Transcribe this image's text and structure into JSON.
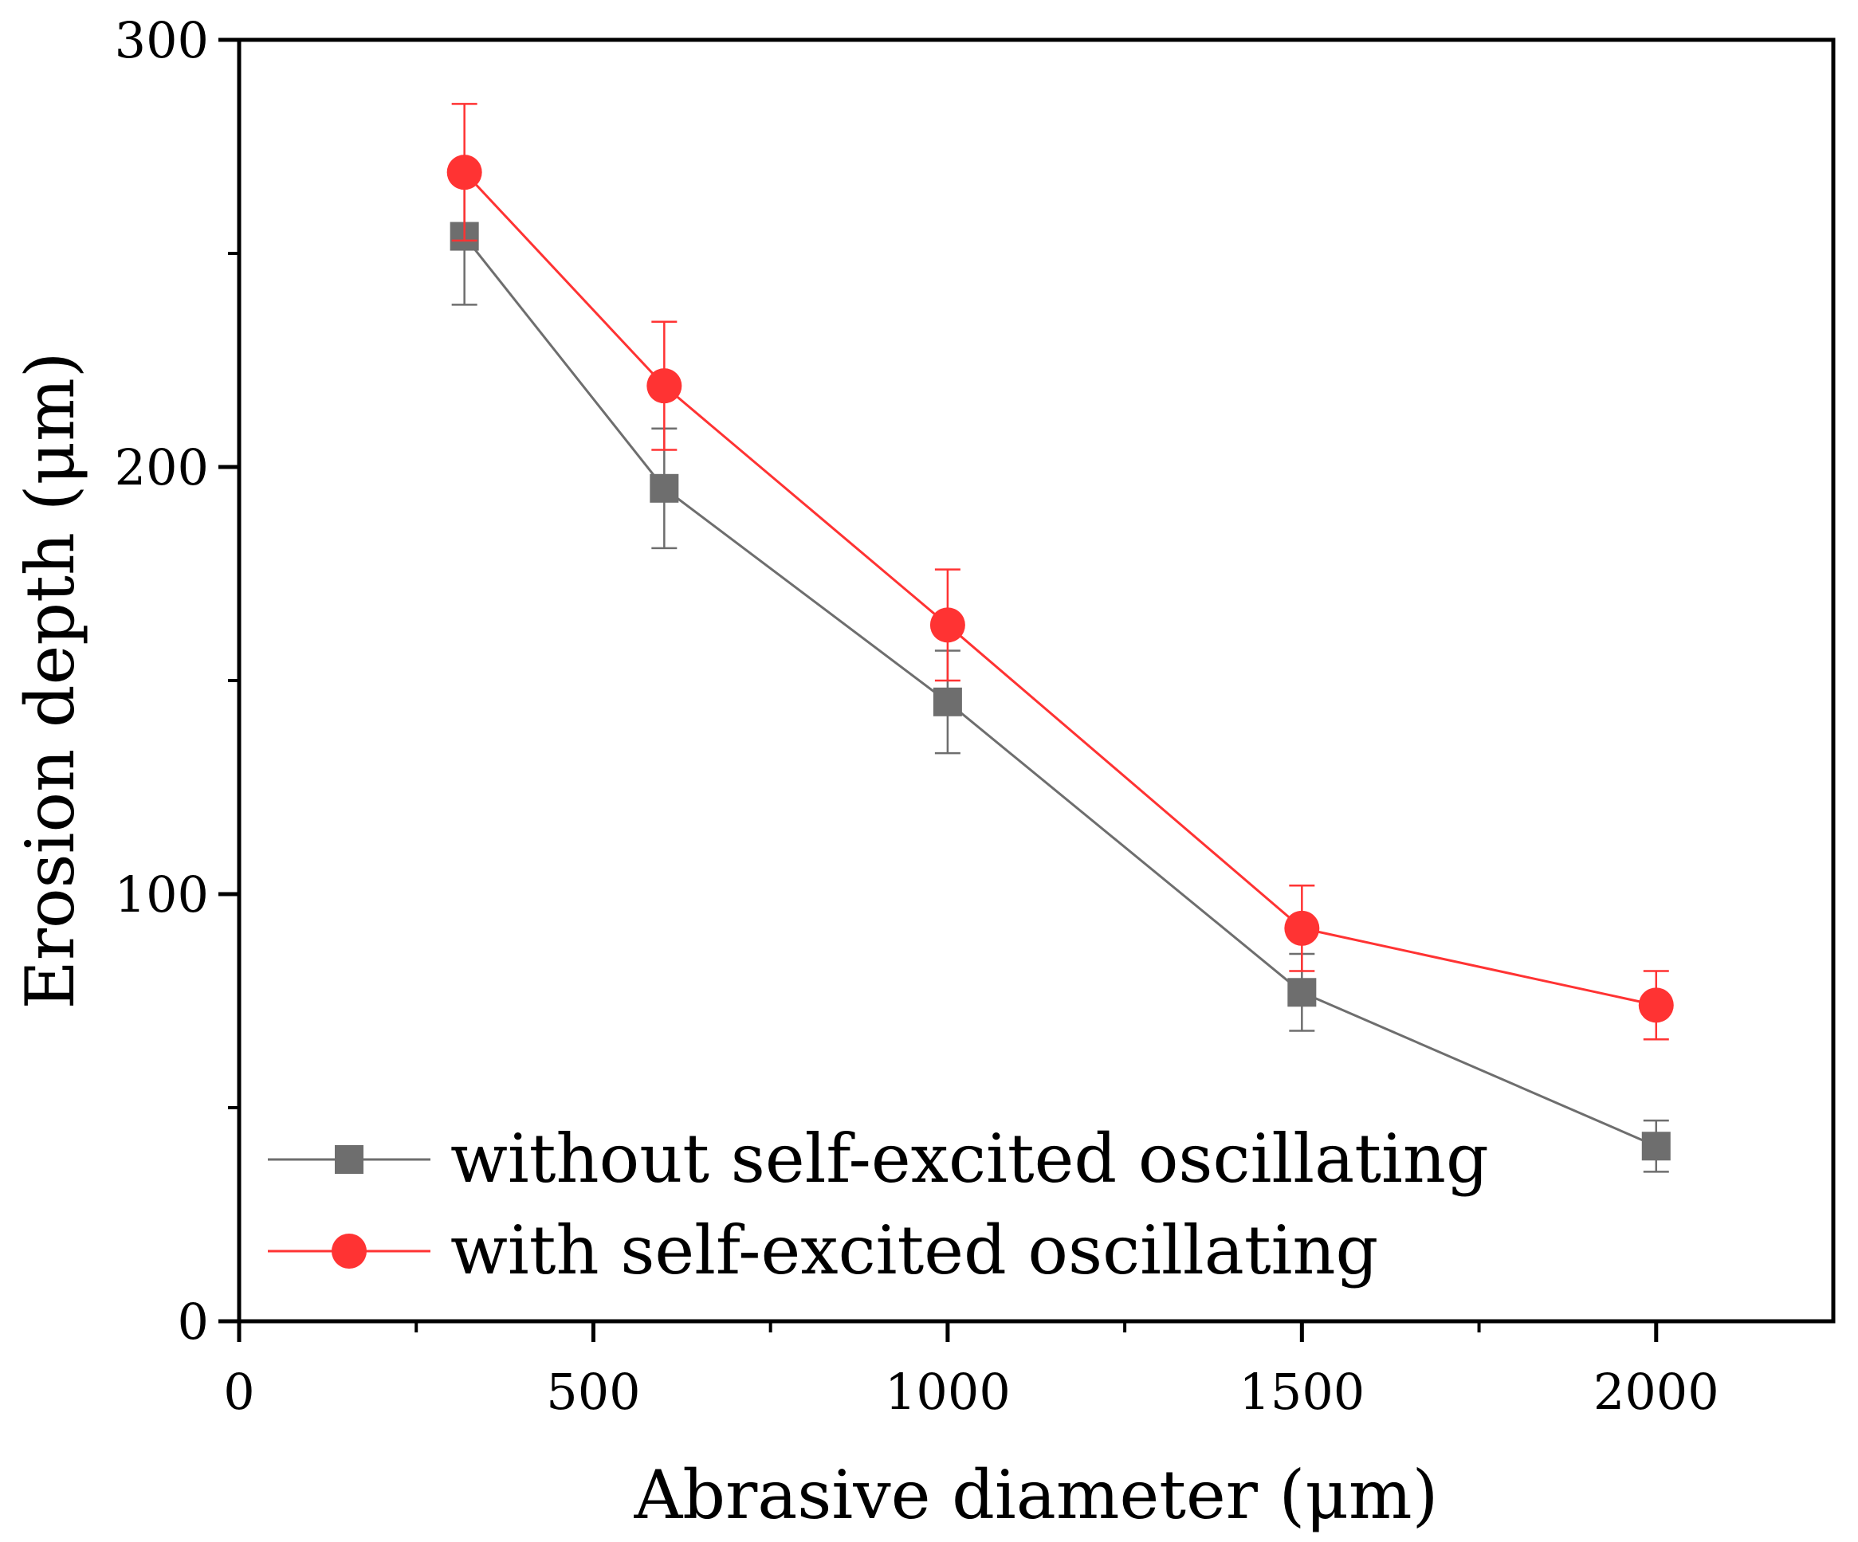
{
  "chart_data": {
    "type": "line",
    "title": "",
    "xlabel": "Abrasive diameter (μm)",
    "ylabel": "Erosion depth (μm)",
    "xlim": [
      0,
      2250
    ],
    "ylim": [
      0,
      300
    ],
    "x_ticks": [
      0,
      500,
      1000,
      1500,
      2000
    ],
    "x_tick_labels": [
      "0",
      "500",
      "1000",
      "1500",
      "2000"
    ],
    "x_minor_ticks": [
      250,
      750,
      1250,
      1750
    ],
    "y_ticks": [
      0,
      100,
      200,
      300
    ],
    "y_tick_labels": [
      "0",
      "100",
      "200",
      "300"
    ],
    "y_minor_ticks": [
      50,
      150,
      250
    ],
    "grid": false,
    "legend_position": "bottom-left",
    "x": [
      318,
      600,
      1000,
      1500,
      2000
    ],
    "series": [
      {
        "name": "without self-excited oscillating",
        "marker": "square",
        "color": "#6e6e6e",
        "values": [
          254,
          195,
          145,
          77,
          41
        ],
        "errors": [
          16,
          14,
          12,
          9,
          6
        ]
      },
      {
        "name": "with self-excited oscillating",
        "marker": "circle",
        "color": "#ff3333",
        "values": [
          269,
          219,
          163,
          92,
          74
        ],
        "errors": [
          16,
          15,
          13,
          10,
          8
        ]
      }
    ]
  }
}
